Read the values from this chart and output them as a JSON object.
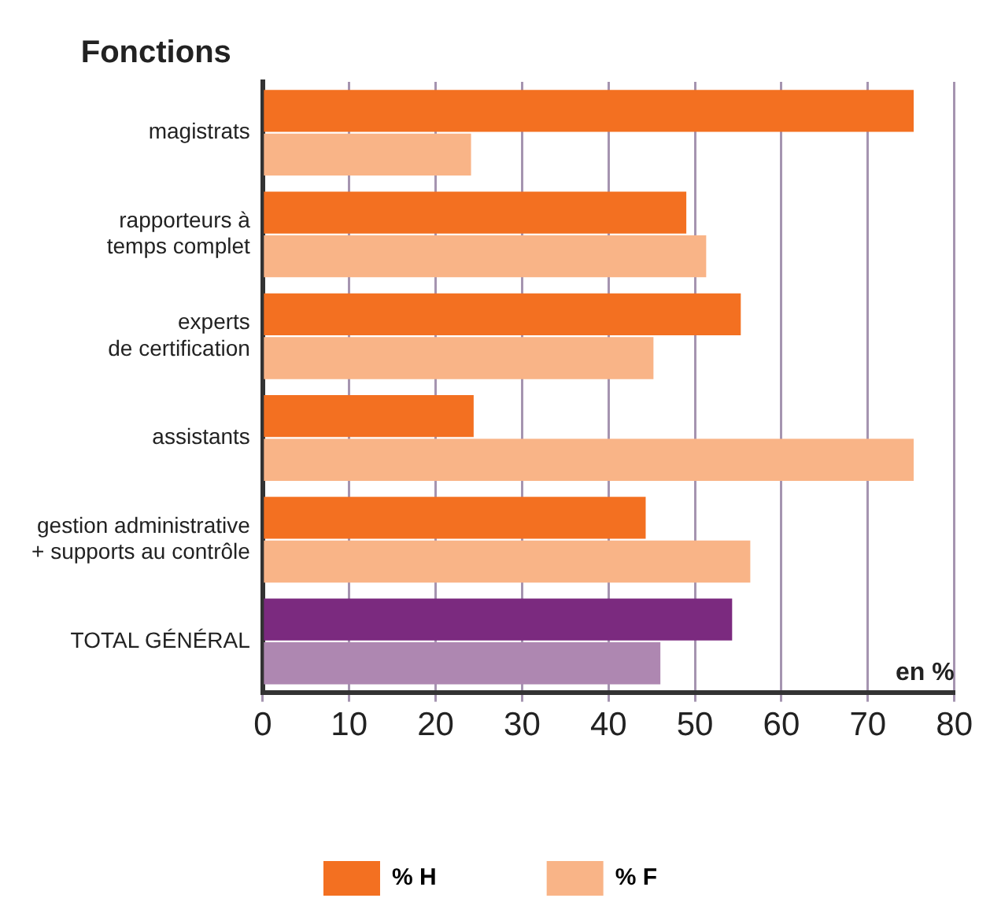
{
  "chart_data": {
    "type": "bar",
    "orientation": "horizontal",
    "ylabel": "Fonctions",
    "xlabel": "en %",
    "categories": [
      "magistrats",
      "rapporteurs à\ntemps complet",
      "experts\nde certification",
      "assistants",
      "gestion administrative\n+ supports au contrôle",
      "TOTAL GÉNÉRAL"
    ],
    "series": [
      {
        "name": "% H",
        "color": "#f37021",
        "colors": [
          "#f37021",
          "#f37021",
          "#f37021",
          "#f37021",
          "#f37021",
          "#7b2a7f"
        ],
        "values": [
          75.3,
          49.0,
          55.3,
          24.4,
          44.3,
          54.3
        ]
      },
      {
        "name": "% F",
        "color": "#f9b487",
        "colors": [
          "#f9b487",
          "#f9b487",
          "#f9b487",
          "#f9b487",
          "#f9b487",
          "#ae87b1"
        ],
        "values": [
          24.1,
          51.3,
          45.2,
          75.3,
          56.4,
          46.0
        ]
      }
    ],
    "xlim": [
      0,
      80
    ],
    "xticks": [
      0,
      10,
      20,
      30,
      40,
      50,
      60,
      70,
      80
    ],
    "grid": "x",
    "legend": "bottom"
  }
}
